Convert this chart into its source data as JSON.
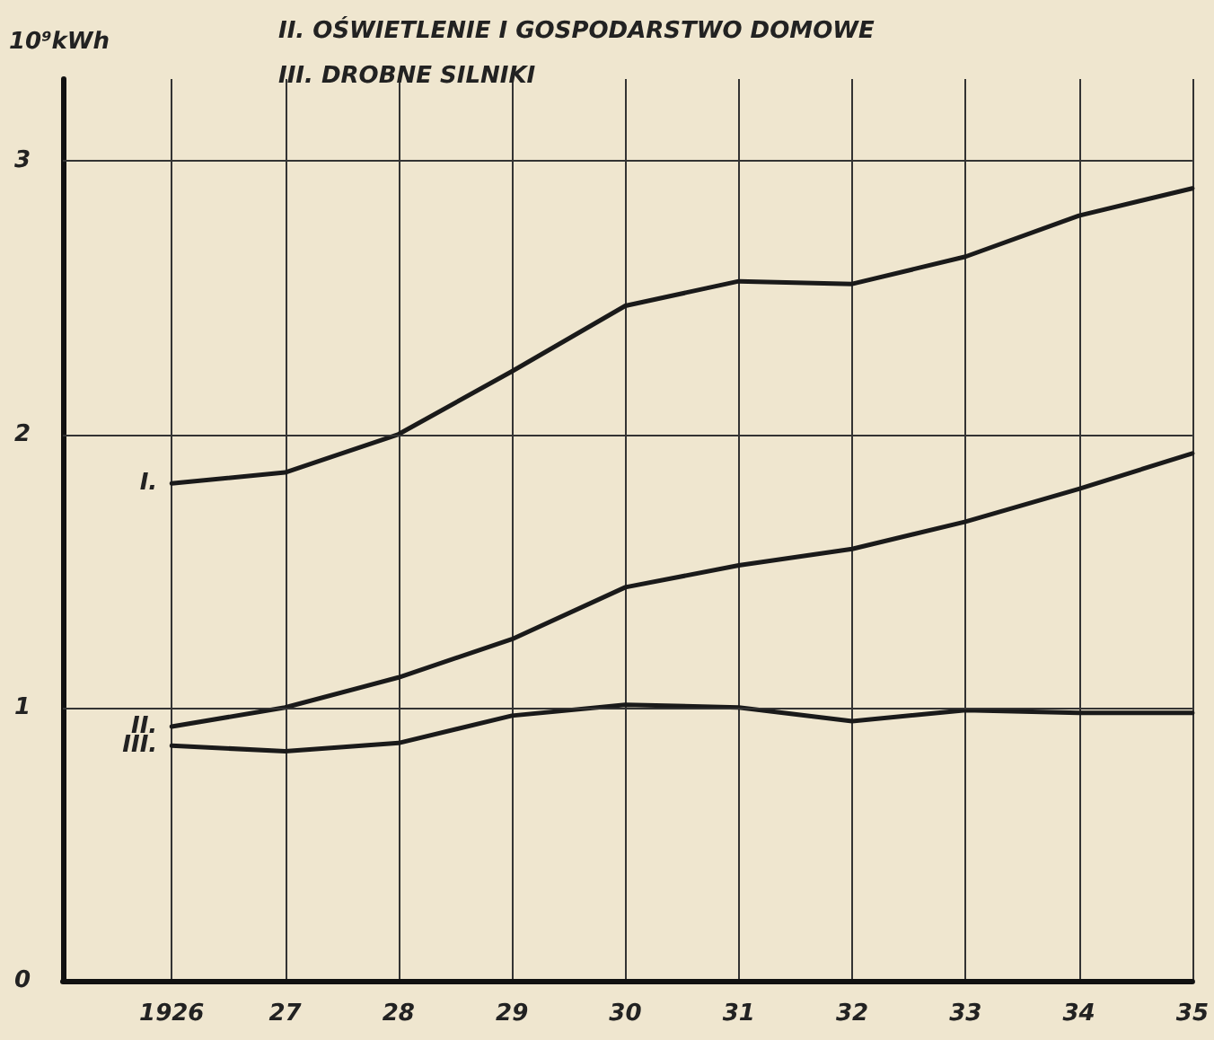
{
  "chart_data": {
    "type": "line",
    "title": "II. OŚWIETLENIE I GOSPODARSTWO DOMOWE",
    "subtitle": "III. DROBNE SILNIKI",
    "ylabel": "10⁹kWh",
    "categories": [
      "1926",
      "27",
      "28",
      "29",
      "30",
      "31",
      "32",
      "33",
      "34",
      "35"
    ],
    "series": [
      {
        "name": "I.",
        "color": "#1a1a1a",
        "values": [
          1.82,
          1.86,
          2.0,
          2.23,
          2.47,
          2.56,
          2.55,
          2.65,
          2.8,
          2.9
        ]
      },
      {
        "name": "II.",
        "color": "#1a1a1a",
        "values": [
          0.93,
          1.0,
          1.11,
          1.25,
          1.44,
          1.52,
          1.58,
          1.68,
          1.8,
          1.93
        ]
      },
      {
        "name": "III.",
        "color": "#1a1a1a",
        "values": [
          0.86,
          0.84,
          0.87,
          0.97,
          1.01,
          1.0,
          0.95,
          0.99,
          0.98,
          0.98
        ]
      }
    ],
    "ylim": [
      0,
      3.3
    ],
    "yticks": [
      0,
      1,
      2,
      3
    ],
    "grid": true,
    "legend": false,
    "marker": "none",
    "line_style": "solid"
  }
}
